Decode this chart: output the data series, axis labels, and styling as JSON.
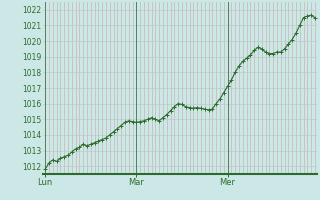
{
  "background_color": "#cce8e6",
  "plot_bg_color": "#cce8e6",
  "line_color": "#2d6b2d",
  "marker_color": "#2d6b2d",
  "vgrid_color": "#c8b4b4",
  "hgrid_color": "#b8cccc",
  "day_line_color": "#5a7a5a",
  "axis_color": "#2d6b2d",
  "tick_label_color": "#2d6b2d",
  "ylim": [
    1011.5,
    1022.5
  ],
  "yticks": [
    1012,
    1013,
    1014,
    1015,
    1016,
    1017,
    1018,
    1019,
    1020,
    1021,
    1022
  ],
  "day_labels": [
    "Lun",
    "Mar",
    "Mer"
  ],
  "n_hours": 72,
  "values": [
    1011.8,
    1012.2,
    1012.4,
    1012.3,
    1012.5,
    1012.6,
    1012.7,
    1012.9,
    1013.1,
    1013.2,
    1013.4,
    1013.3,
    1013.4,
    1013.5,
    1013.6,
    1013.7,
    1013.8,
    1014.0,
    1014.2,
    1014.4,
    1014.6,
    1014.8,
    1014.9,
    1014.85,
    1014.8,
    1014.85,
    1014.9,
    1015.0,
    1015.1,
    1015.0,
    1014.9,
    1015.1,
    1015.3,
    1015.55,
    1015.8,
    1016.0,
    1015.95,
    1015.8,
    1015.75,
    1015.7,
    1015.75,
    1015.7,
    1015.65,
    1015.6,
    1015.65,
    1016.0,
    1016.3,
    1016.7,
    1017.1,
    1017.5,
    1018.0,
    1018.4,
    1018.7,
    1018.9,
    1019.1,
    1019.4,
    1019.6,
    1019.5,
    1019.3,
    1019.2,
    1019.2,
    1019.3,
    1019.3,
    1019.5,
    1019.8,
    1020.1,
    1020.5,
    1021.0,
    1021.5,
    1021.6,
    1021.65,
    1021.5
  ]
}
